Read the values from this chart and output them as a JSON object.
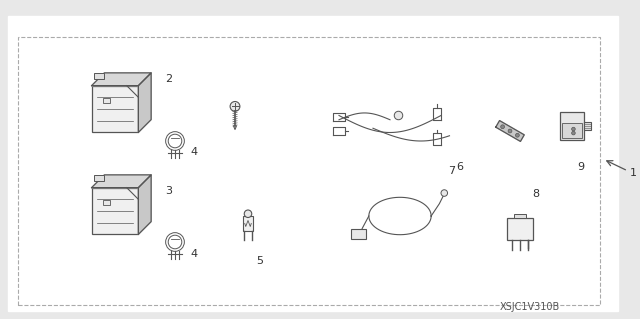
{
  "bg_color": "#e8e8e8",
  "diagram_bg": "#ffffff",
  "line_color": "#555555",
  "label_color": "#333333",
  "title": "XSJC1V310B",
  "title_fontsize": 7,
  "label_fontsize": 8,
  "figsize": [
    6.4,
    3.19
  ],
  "dpi": 100
}
